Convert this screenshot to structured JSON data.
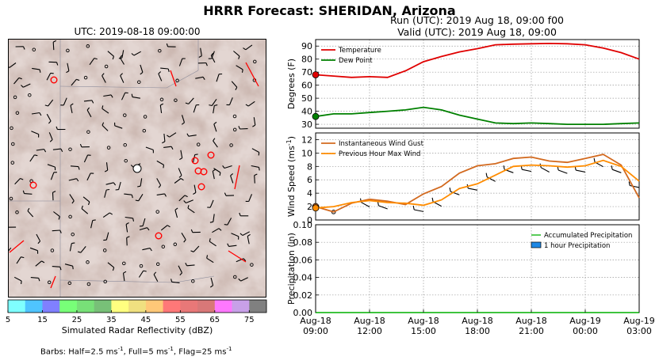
{
  "title": "HRRR Forecast: SHERIDAN, Arizona",
  "map": {
    "time_label": "UTC: 2019-08-18 09:00:00",
    "marker_color": "#ff0000",
    "station_marker_color": "#ffffff"
  },
  "colorbar": {
    "label": "Simulated Radar Reflectivity (dBZ)",
    "ticks": [
      "5",
      "15",
      "25",
      "35",
      "45",
      "55",
      "65",
      "75"
    ],
    "colors": [
      "#7fffff",
      "#4fc4ff",
      "#8080ff",
      "#78ff78",
      "#78e078",
      "#78c078",
      "#ffff80",
      "#f0e080",
      "#ffc878",
      "#ff7878",
      "#e87878",
      "#d87878",
      "#ff78ff",
      "#c8a0e8",
      "#808080"
    ]
  },
  "barbs_note": {
    "prefix": "Barbs: Half=2.5 ms",
    "mid1": ", Full=5 ms",
    "mid2": ", Flag=25 ms",
    "exp": "-1"
  },
  "run_label": "Run (UTC): 2019 Aug 18, 09:00 f00",
  "valid_label": "Valid (UTC): 2019 Aug 18, 09:00",
  "chart_data": [
    {
      "type": "line",
      "ylabel": "Degrees (F)",
      "ylim": [
        27,
        95
      ],
      "yticks": [
        30,
        40,
        50,
        60,
        70,
        80,
        90
      ],
      "x": [
        0,
        1,
        2,
        3,
        4,
        5,
        6,
        7,
        8,
        9,
        10,
        11,
        12,
        13,
        14,
        15,
        16,
        17,
        18
      ],
      "series": [
        {
          "name": "Temperature",
          "color": "#e00000",
          "values": [
            68,
            67,
            66,
            66.5,
            66,
            71,
            78,
            82,
            85.5,
            88,
            91,
            91.5,
            91.8,
            92,
            91.8,
            91,
            88.5,
            85,
            80
          ]
        },
        {
          "name": "Dew Point",
          "color": "#008000",
          "values": [
            36,
            38,
            38,
            39,
            40,
            41,
            43,
            41,
            37,
            34,
            31,
            30.5,
            31,
            30.5,
            30,
            30,
            30,
            30.5,
            31
          ]
        }
      ],
      "legend": "top-left",
      "grid": true
    },
    {
      "type": "line",
      "ylabel": "Wind Speed (ms",
      "ylabel_exp": "-1",
      "ylim": [
        0,
        13
      ],
      "yticks": [
        0,
        2,
        4,
        6,
        8,
        10,
        12
      ],
      "x": [
        0,
        1,
        2,
        3,
        4,
        5,
        6,
        7,
        8,
        9,
        10,
        11,
        12,
        13,
        14,
        15,
        16,
        17,
        18
      ],
      "series": [
        {
          "name": "Instantaneous Wind Gust",
          "color": "#d2691e",
          "values": [
            2.0,
            1.2,
            2.5,
            3.1,
            2.8,
            2.3,
            3.9,
            5.0,
            7.0,
            8.1,
            8.4,
            9.2,
            9.4,
            8.8,
            8.6,
            9.2,
            9.8,
            8.2,
            3.3
          ]
        },
        {
          "name": "Previous Hour Max Wind",
          "color": "#ff8c00",
          "values": [
            1.8,
            2.0,
            2.6,
            2.9,
            2.6,
            2.5,
            2.2,
            3.0,
            4.7,
            5.4,
            6.7,
            8.0,
            8.2,
            8.1,
            7.9,
            8.1,
            8.9,
            8.0,
            5.8
          ]
        }
      ],
      "barb_hours": [
        3,
        4,
        6,
        7,
        8,
        9,
        10,
        11,
        12,
        13,
        14,
        15,
        16,
        17,
        18
      ],
      "legend": "top-left",
      "grid": true
    },
    {
      "type": "area",
      "ylabel": "Precipitation (in)",
      "ylim": [
        0,
        0.1
      ],
      "yticks": [
        "0.00",
        "0.02",
        "0.04",
        "0.06",
        "0.08",
        "0.10"
      ],
      "x": [
        0,
        18
      ],
      "series": [
        {
          "name": "Accumulated Precipitation",
          "color": "#22bb22",
          "values": [
            0,
            0
          ]
        },
        {
          "name": "1 hour Precipitation",
          "color": "#1e88e5",
          "values": [
            0,
            0
          ]
        }
      ],
      "xticks": [
        {
          "hour": 0,
          "line1": "Aug-18",
          "line2": "09:00"
        },
        {
          "hour": 3,
          "line1": "Aug-18",
          "line2": "12:00"
        },
        {
          "hour": 6,
          "line1": "Aug-18",
          "line2": "15:00"
        },
        {
          "hour": 9,
          "line1": "Aug-18",
          "line2": "18:00"
        },
        {
          "hour": 12,
          "line1": "Aug-18",
          "line2": "21:00"
        },
        {
          "hour": 15,
          "line1": "Aug-19",
          "line2": "00:00"
        },
        {
          "hour": 18,
          "line1": "Aug-19",
          "line2": "03:00"
        }
      ],
      "legend": "top-right",
      "grid": true
    }
  ]
}
